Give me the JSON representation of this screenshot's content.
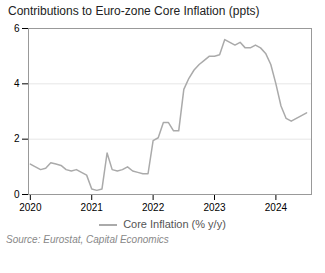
{
  "chart_data": {
    "type": "line",
    "title": "Contributions to Euro-zone Core Inflation (ppts)",
    "source": "Source: Eurostat, Capital Economics",
    "x": [
      2020.0,
      2020.083,
      2020.167,
      2020.25,
      2020.333,
      2020.417,
      2020.5,
      2020.583,
      2020.667,
      2020.75,
      2020.833,
      2020.917,
      2021.0,
      2021.083,
      2021.167,
      2021.25,
      2021.333,
      2021.417,
      2021.5,
      2021.583,
      2021.667,
      2021.75,
      2021.833,
      2021.917,
      2022.0,
      2022.083,
      2022.167,
      2022.25,
      2022.333,
      2022.417,
      2022.5,
      2022.583,
      2022.667,
      2022.75,
      2022.833,
      2022.917,
      2023.0,
      2023.083,
      2023.167,
      2023.25,
      2023.333,
      2023.417,
      2023.5,
      2023.583,
      2023.667,
      2023.75,
      2023.833,
      2023.917,
      2024.0,
      2024.083,
      2024.167,
      2024.25,
      2024.333,
      2024.417,
      2024.5
    ],
    "series": [
      {
        "name": "Core Inflation (% y/y)",
        "color": "#aaaaaa",
        "values": [
          1.1,
          1.0,
          0.9,
          0.95,
          1.15,
          1.1,
          1.05,
          0.9,
          0.85,
          0.9,
          0.8,
          0.7,
          0.2,
          0.15,
          0.2,
          1.5,
          0.9,
          0.85,
          0.9,
          1.0,
          0.85,
          0.8,
          0.75,
          0.75,
          1.95,
          2.05,
          2.6,
          2.6,
          2.3,
          2.3,
          3.8,
          4.2,
          4.5,
          4.7,
          4.85,
          5.0,
          5.0,
          5.05,
          5.6,
          5.5,
          5.4,
          5.5,
          5.3,
          5.3,
          5.4,
          5.3,
          5.1,
          4.7,
          4.0,
          3.2,
          2.75,
          2.65,
          2.75,
          2.85,
          2.95
        ]
      }
    ],
    "xlim": [
      2019.97,
      2024.58
    ],
    "xticks": [
      2020,
      2021,
      2022,
      2023,
      2024
    ],
    "ylim": [
      0,
      6
    ],
    "yticks": [
      0,
      2,
      4,
      6
    ],
    "grid": "y",
    "legend": "bottom"
  }
}
